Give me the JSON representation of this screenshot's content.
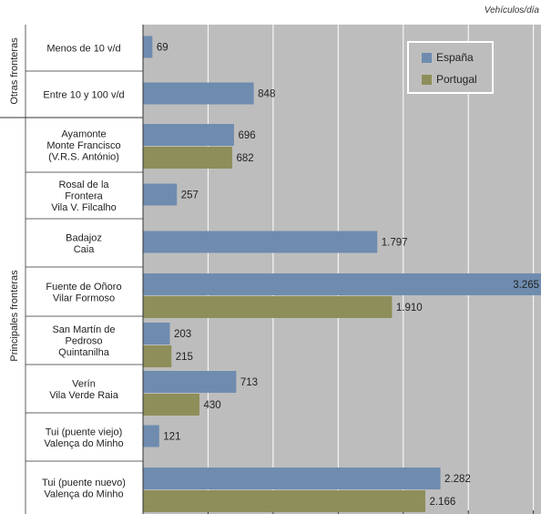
{
  "unit_label": "Vehículos/día",
  "colors": {
    "espana": "#6f8caf",
    "portugal": "#8e8e5a",
    "background": "#bdbdbd",
    "grid": "#ffffff"
  },
  "chart_data": {
    "type": "bar",
    "orientation": "horizontal",
    "xlim": [
      0,
      3500
    ],
    "grid": true,
    "legend_position": "top-right",
    "groups": [
      {
        "label": "Otras fronteras",
        "rows": [
          0,
          1
        ]
      },
      {
        "label": "Principales fronteras",
        "rows": [
          2,
          3,
          4,
          5,
          6,
          7,
          8,
          9
        ]
      }
    ],
    "categories": [
      [
        "Menos de 10 v/d"
      ],
      [
        "Entre 10 y 100 v/d"
      ],
      [
        "Ayamonte",
        "Monte Francisco",
        "(V.R.S. António)"
      ],
      [
        "Rosal de la",
        "Frontera",
        "Vila V. Filcalho"
      ],
      [
        "Badajoz",
        "Caia"
      ],
      [
        "Fuente de Oñoro",
        "Vilar Formoso"
      ],
      [
        "San Martín de",
        "Pedroso",
        "Quintanilha"
      ],
      [
        "Verín",
        "Vila Verde Raia"
      ],
      [
        "Tui (puente viejo)",
        "Valença do Minho"
      ],
      [
        "Tui (puente nuevo)",
        "Valença do Minho"
      ]
    ],
    "series": [
      {
        "name": "España",
        "values": [
          69,
          848,
          696,
          257,
          1797,
          3265,
          203,
          713,
          121,
          2282
        ],
        "labels": [
          "69",
          "848",
          "696",
          "257",
          "1.797",
          "3.265",
          "203",
          "713",
          "121",
          "2.282"
        ]
      },
      {
        "name": "Portugal",
        "values": [
          null,
          null,
          682,
          null,
          null,
          1910,
          215,
          430,
          null,
          2166
        ],
        "labels": [
          null,
          null,
          "682",
          null,
          null,
          "1.910",
          "215",
          "430",
          null,
          "2.166"
        ]
      }
    ]
  }
}
